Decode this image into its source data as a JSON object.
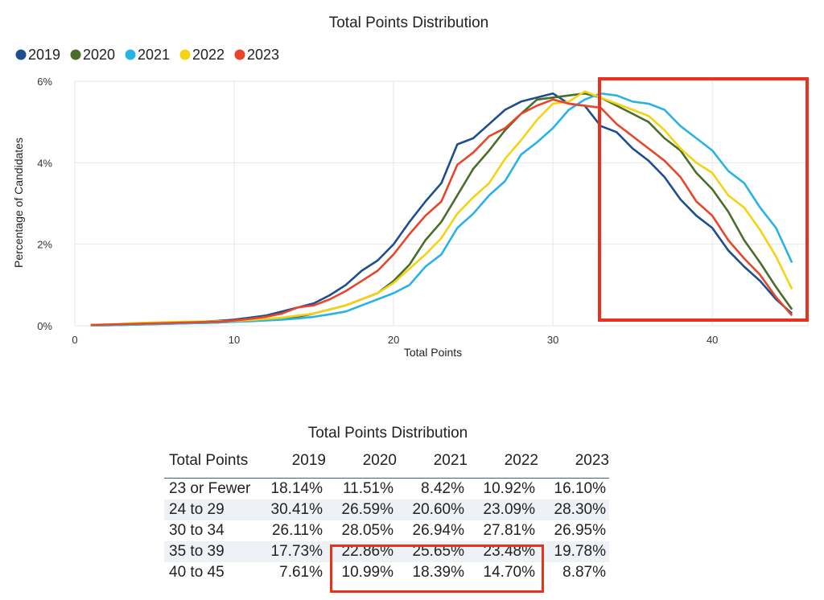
{
  "chart_data": [
    {
      "type": "line",
      "title": "Total Points Distribution",
      "xlabel": "Total Points",
      "ylabel": "Percentage of Candidates",
      "xlim": [
        0,
        46
      ],
      "ylim": [
        0,
        6
      ],
      "x_ticks": [
        "0",
        "10",
        "20",
        "30",
        "40"
      ],
      "y_ticks": [
        "0%",
        "2%",
        "4%",
        "6%"
      ],
      "grid": true,
      "legend_placement": "top-left",
      "x": [
        1,
        2,
        3,
        4,
        5,
        6,
        7,
        8,
        9,
        10,
        11,
        12,
        13,
        14,
        15,
        16,
        17,
        18,
        19,
        20,
        21,
        22,
        23,
        24,
        25,
        26,
        27,
        28,
        29,
        30,
        31,
        32,
        33,
        34,
        35,
        36,
        37,
        38,
        39,
        40,
        41,
        42,
        43,
        44,
        45
      ],
      "series": [
        {
          "name": "2019",
          "color": "#1f4e8c",
          "values": [
            0.02,
            0.02,
            0.03,
            0.05,
            0.06,
            0.07,
            0.08,
            0.1,
            0.12,
            0.15,
            0.2,
            0.25,
            0.35,
            0.45,
            0.55,
            0.75,
            1.0,
            1.35,
            1.6,
            2.0,
            2.55,
            3.05,
            3.5,
            4.45,
            4.6,
            4.95,
            5.3,
            5.5,
            5.6,
            5.7,
            5.45,
            5.4,
            4.9,
            4.75,
            4.35,
            4.05,
            3.65,
            3.1,
            2.7,
            2.4,
            1.85,
            1.45,
            1.1,
            0.65,
            0.3
          ]
        },
        {
          "name": "2020",
          "color": "#4a6e2a",
          "values": [
            0.01,
            0.01,
            0.02,
            0.03,
            0.04,
            0.05,
            0.06,
            0.07,
            0.08,
            0.1,
            0.12,
            0.15,
            0.18,
            0.22,
            0.3,
            0.4,
            0.5,
            0.65,
            0.8,
            1.1,
            1.5,
            2.1,
            2.55,
            3.2,
            3.85,
            4.3,
            4.8,
            5.2,
            5.55,
            5.6,
            5.65,
            5.7,
            5.6,
            5.4,
            5.2,
            5.0,
            4.6,
            4.3,
            3.75,
            3.35,
            2.8,
            2.1,
            1.55,
            0.95,
            0.4
          ]
        },
        {
          "name": "2021",
          "color": "#29b2e6",
          "values": [
            0.01,
            0.01,
            0.02,
            0.03,
            0.04,
            0.05,
            0.06,
            0.07,
            0.08,
            0.1,
            0.11,
            0.13,
            0.15,
            0.18,
            0.22,
            0.28,
            0.35,
            0.5,
            0.65,
            0.8,
            1.0,
            1.45,
            1.75,
            2.4,
            2.75,
            3.2,
            3.55,
            4.2,
            4.5,
            4.85,
            5.3,
            5.55,
            5.7,
            5.65,
            5.5,
            5.45,
            5.3,
            4.9,
            4.6,
            4.3,
            3.8,
            3.5,
            2.9,
            2.4,
            1.55
          ]
        },
        {
          "name": "2022",
          "color": "#f5d312",
          "values": [
            0.02,
            0.03,
            0.05,
            0.07,
            0.08,
            0.09,
            0.1,
            0.1,
            0.11,
            0.12,
            0.14,
            0.17,
            0.2,
            0.25,
            0.3,
            0.4,
            0.5,
            0.65,
            0.8,
            1.05,
            1.4,
            1.75,
            2.15,
            2.75,
            3.15,
            3.5,
            4.1,
            4.55,
            5.05,
            5.45,
            5.5,
            5.75,
            5.6,
            5.45,
            5.3,
            5.15,
            4.8,
            4.35,
            4.0,
            3.75,
            3.2,
            2.9,
            2.35,
            1.7,
            0.9
          ]
        },
        {
          "name": "2023",
          "color": "#e8462a",
          "values": [
            0.02,
            0.03,
            0.04,
            0.05,
            0.06,
            0.07,
            0.08,
            0.09,
            0.1,
            0.13,
            0.17,
            0.22,
            0.3,
            0.45,
            0.5,
            0.65,
            0.85,
            1.1,
            1.35,
            1.75,
            2.25,
            2.7,
            3.05,
            3.95,
            4.25,
            4.65,
            4.85,
            5.2,
            5.4,
            5.55,
            5.45,
            5.4,
            5.35,
            4.95,
            4.65,
            4.35,
            4.05,
            3.65,
            3.05,
            2.7,
            2.1,
            1.65,
            1.25,
            0.7,
            0.25
          ]
        }
      ]
    },
    {
      "type": "table",
      "title": "Total Points Distribution",
      "columns": [
        "Total Points",
        "2019",
        "2020",
        "2021",
        "2022",
        "2023"
      ],
      "rows": [
        [
          "23 or Fewer",
          "18.14%",
          "11.51%",
          "8.42%",
          "10.92%",
          "16.10%"
        ],
        [
          "24 to 29",
          "30.41%",
          "26.59%",
          "20.60%",
          "23.09%",
          "28.30%"
        ],
        [
          "30 to 34",
          "26.11%",
          "28.05%",
          "26.94%",
          "27.81%",
          "26.95%"
        ],
        [
          "35 to 39",
          "17.73%",
          "22.86%",
          "25.65%",
          "23.48%",
          "19.78%"
        ],
        [
          "40 to 45",
          "7.61%",
          "10.99%",
          "18.39%",
          "14.70%",
          "8.87%"
        ]
      ]
    }
  ],
  "highlight_color": "#e8321e"
}
